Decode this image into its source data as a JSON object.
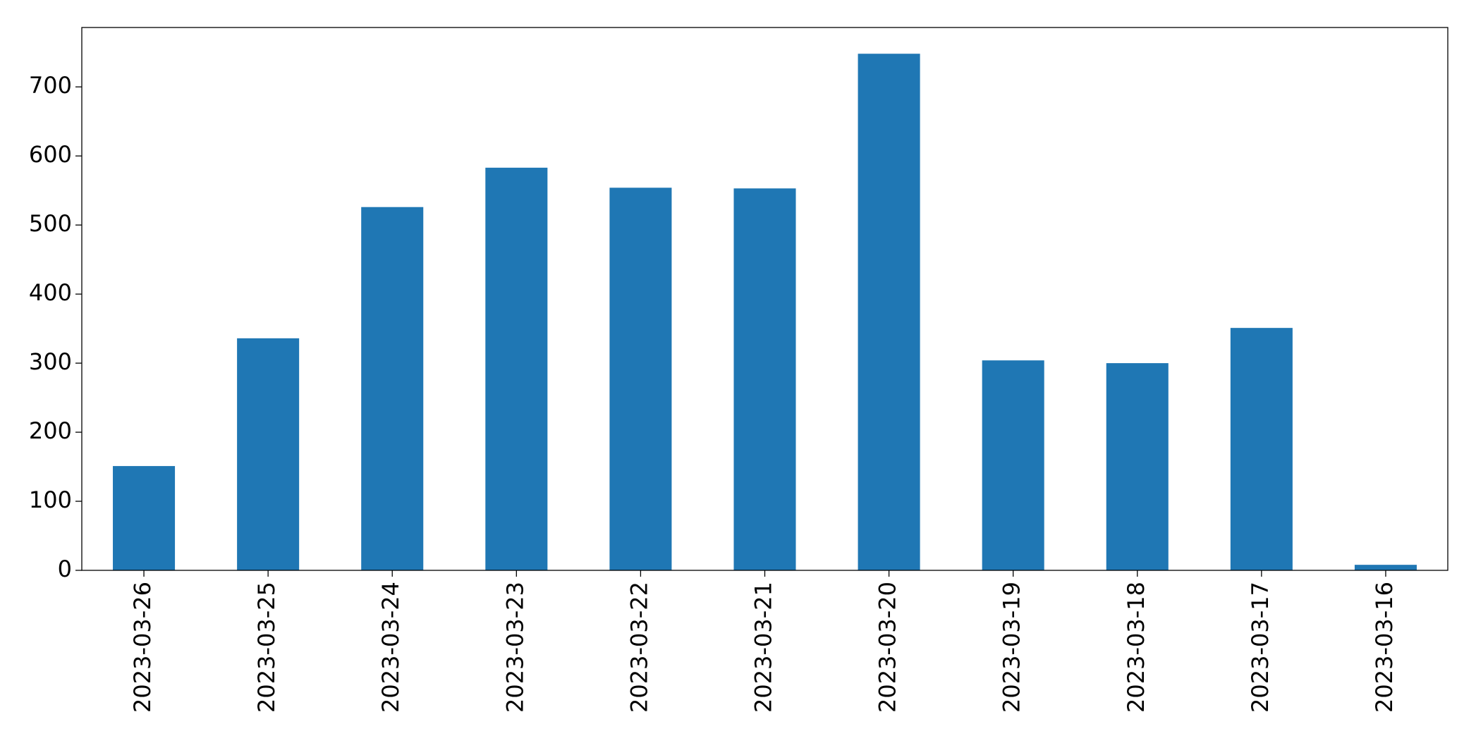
{
  "chart_data": {
    "type": "bar",
    "categories": [
      "2023-03-26",
      "2023-03-25",
      "2023-03-24",
      "2023-03-23",
      "2023-03-22",
      "2023-03-21",
      "2023-03-20",
      "2023-03-19",
      "2023-03-18",
      "2023-03-17",
      "2023-03-16"
    ],
    "values": [
      151,
      336,
      526,
      583,
      554,
      553,
      748,
      304,
      300,
      351,
      8
    ],
    "color": "#1f77b4",
    "ylim": [
      0,
      786
    ],
    "yticks": [
      0,
      100,
      200,
      300,
      400,
      500,
      600,
      700
    ],
    "grid": false
  }
}
